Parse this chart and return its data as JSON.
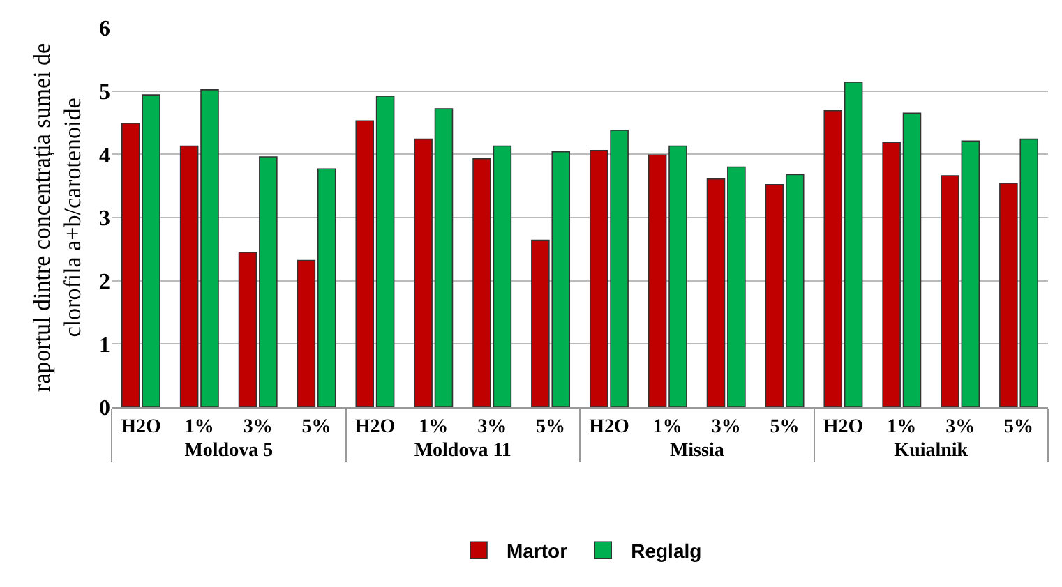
{
  "chart_data": {
    "type": "bar",
    "ylabel": "raportul dintre concentrația sumei de clorofila a+b/carotenoide",
    "categories": [
      "H2O",
      "1%",
      "3%",
      "5%",
      "H2O",
      "1%",
      "3%",
      "5%",
      "H2O",
      "1%",
      "3%",
      "5%",
      "H2O",
      "1%",
      "3%",
      "5%"
    ],
    "annotations": [
      "Moldova 5",
      "Moldova 11",
      "Missia",
      "Kuialnik"
    ],
    "series": [
      {
        "name": "Martor",
        "color": "#c00000",
        "values": [
          4.49,
          4.13,
          2.45,
          2.32,
          4.53,
          4.24,
          3.93,
          2.64,
          4.06,
          3.99,
          3.61,
          3.52,
          4.69,
          4.19,
          3.66,
          3.54
        ]
      },
      {
        "name": "Reglalg",
        "color": "#00b050",
        "values": [
          4.94,
          5.02,
          3.96,
          3.77,
          4.92,
          4.72,
          4.13,
          4.04,
          4.38,
          4.13,
          3.8,
          3.68,
          5.14,
          4.65,
          4.21,
          4.24
        ]
      }
    ],
    "ylim": [
      0,
      6
    ],
    "yticks": [
      0,
      1,
      2,
      3,
      4,
      5,
      6
    ],
    "grid": "y",
    "legend": "bottom"
  }
}
